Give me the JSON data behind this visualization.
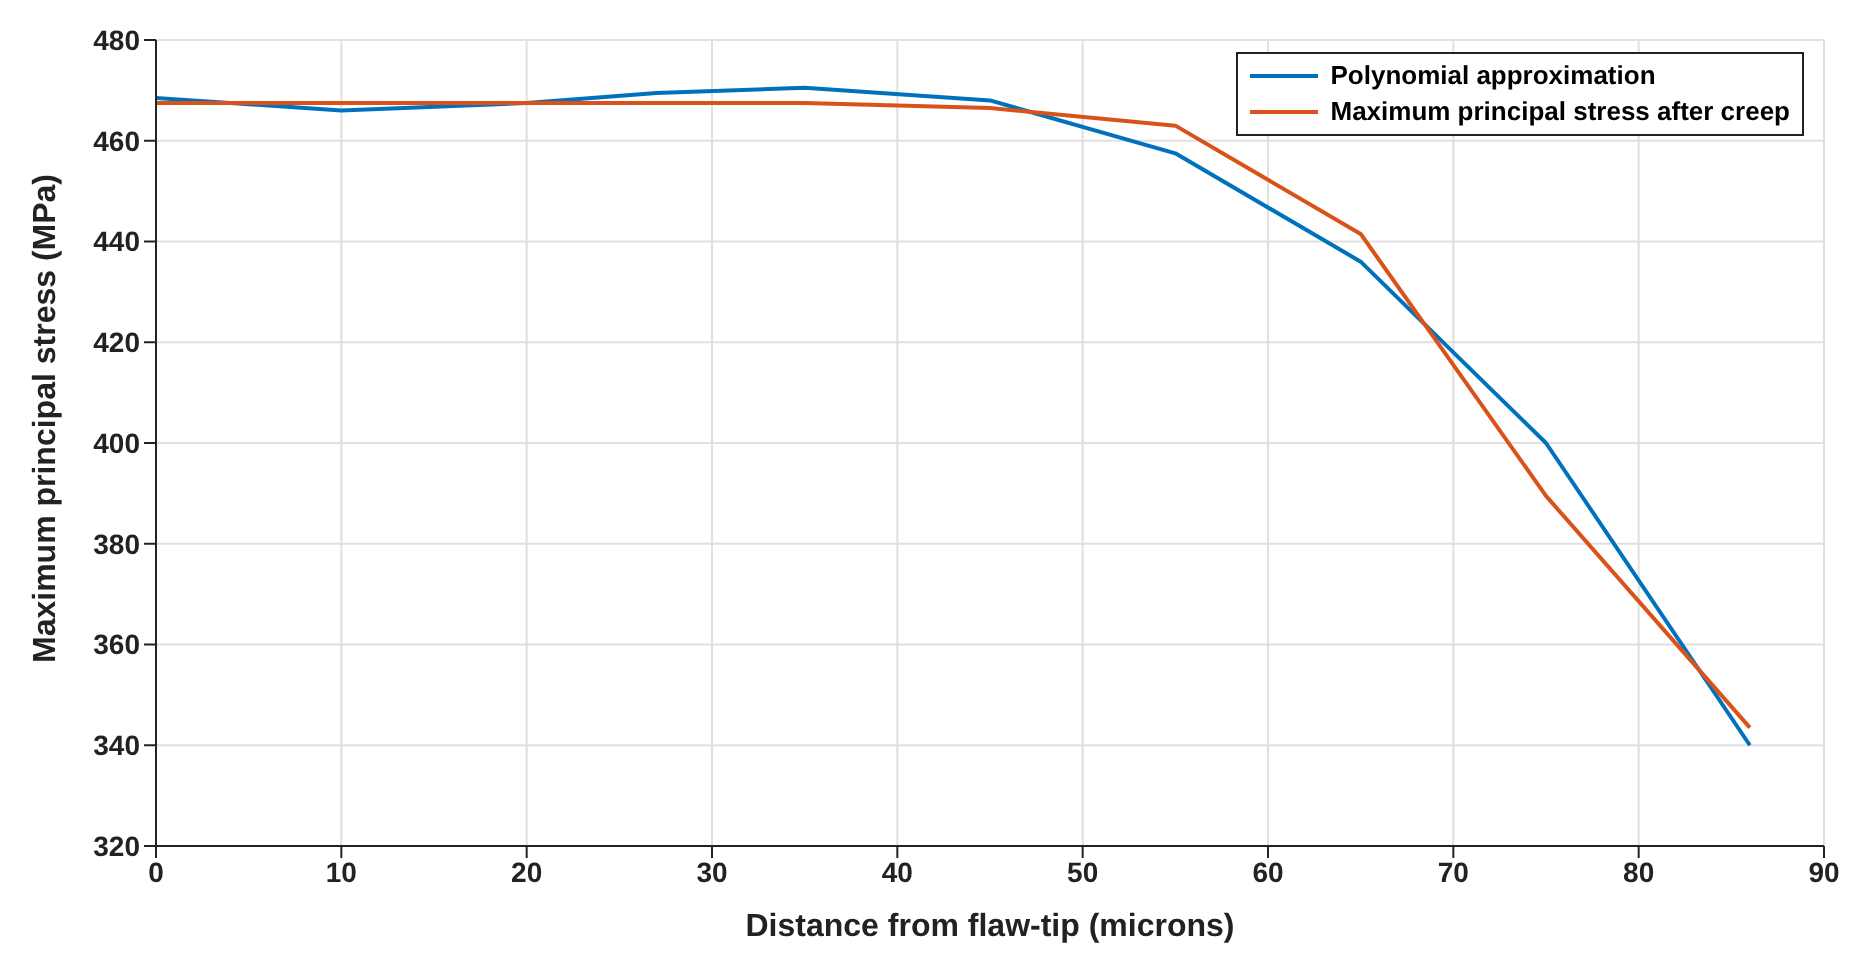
{
  "chart_data": {
    "type": "line",
    "xlabel": "Distance from flaw-tip (microns)",
    "ylabel": "Maximum principal stress (MPa)",
    "xlim": [
      0,
      90
    ],
    "xticks": [
      0,
      10,
      20,
      30,
      40,
      50,
      60,
      70,
      80,
      90
    ],
    "ylim": [
      320,
      480
    ],
    "yticks": [
      320,
      340,
      360,
      380,
      400,
      420,
      440,
      460,
      480
    ],
    "grid": true,
    "legend": "top right",
    "line_style": "solid",
    "marker": "none",
    "series": [
      {
        "name": "Polynomial approximation",
        "color": "#0072bd",
        "x": [
          0,
          10,
          20,
          27,
          35,
          45,
          55,
          65,
          75,
          86
        ],
        "values": [
          468.5,
          466,
          467.5,
          469.5,
          470.5,
          468,
          457.5,
          436,
          400,
          340
        ]
      },
      {
        "name": "Maximum principal stress after creep",
        "color": "#d95319",
        "x": [
          0,
          10,
          20,
          35,
          45,
          55,
          65,
          75,
          86
        ],
        "values": [
          467.5,
          467.5,
          467.5,
          467.5,
          466.5,
          463,
          441.5,
          389.5,
          343.5
        ]
      }
    ]
  }
}
